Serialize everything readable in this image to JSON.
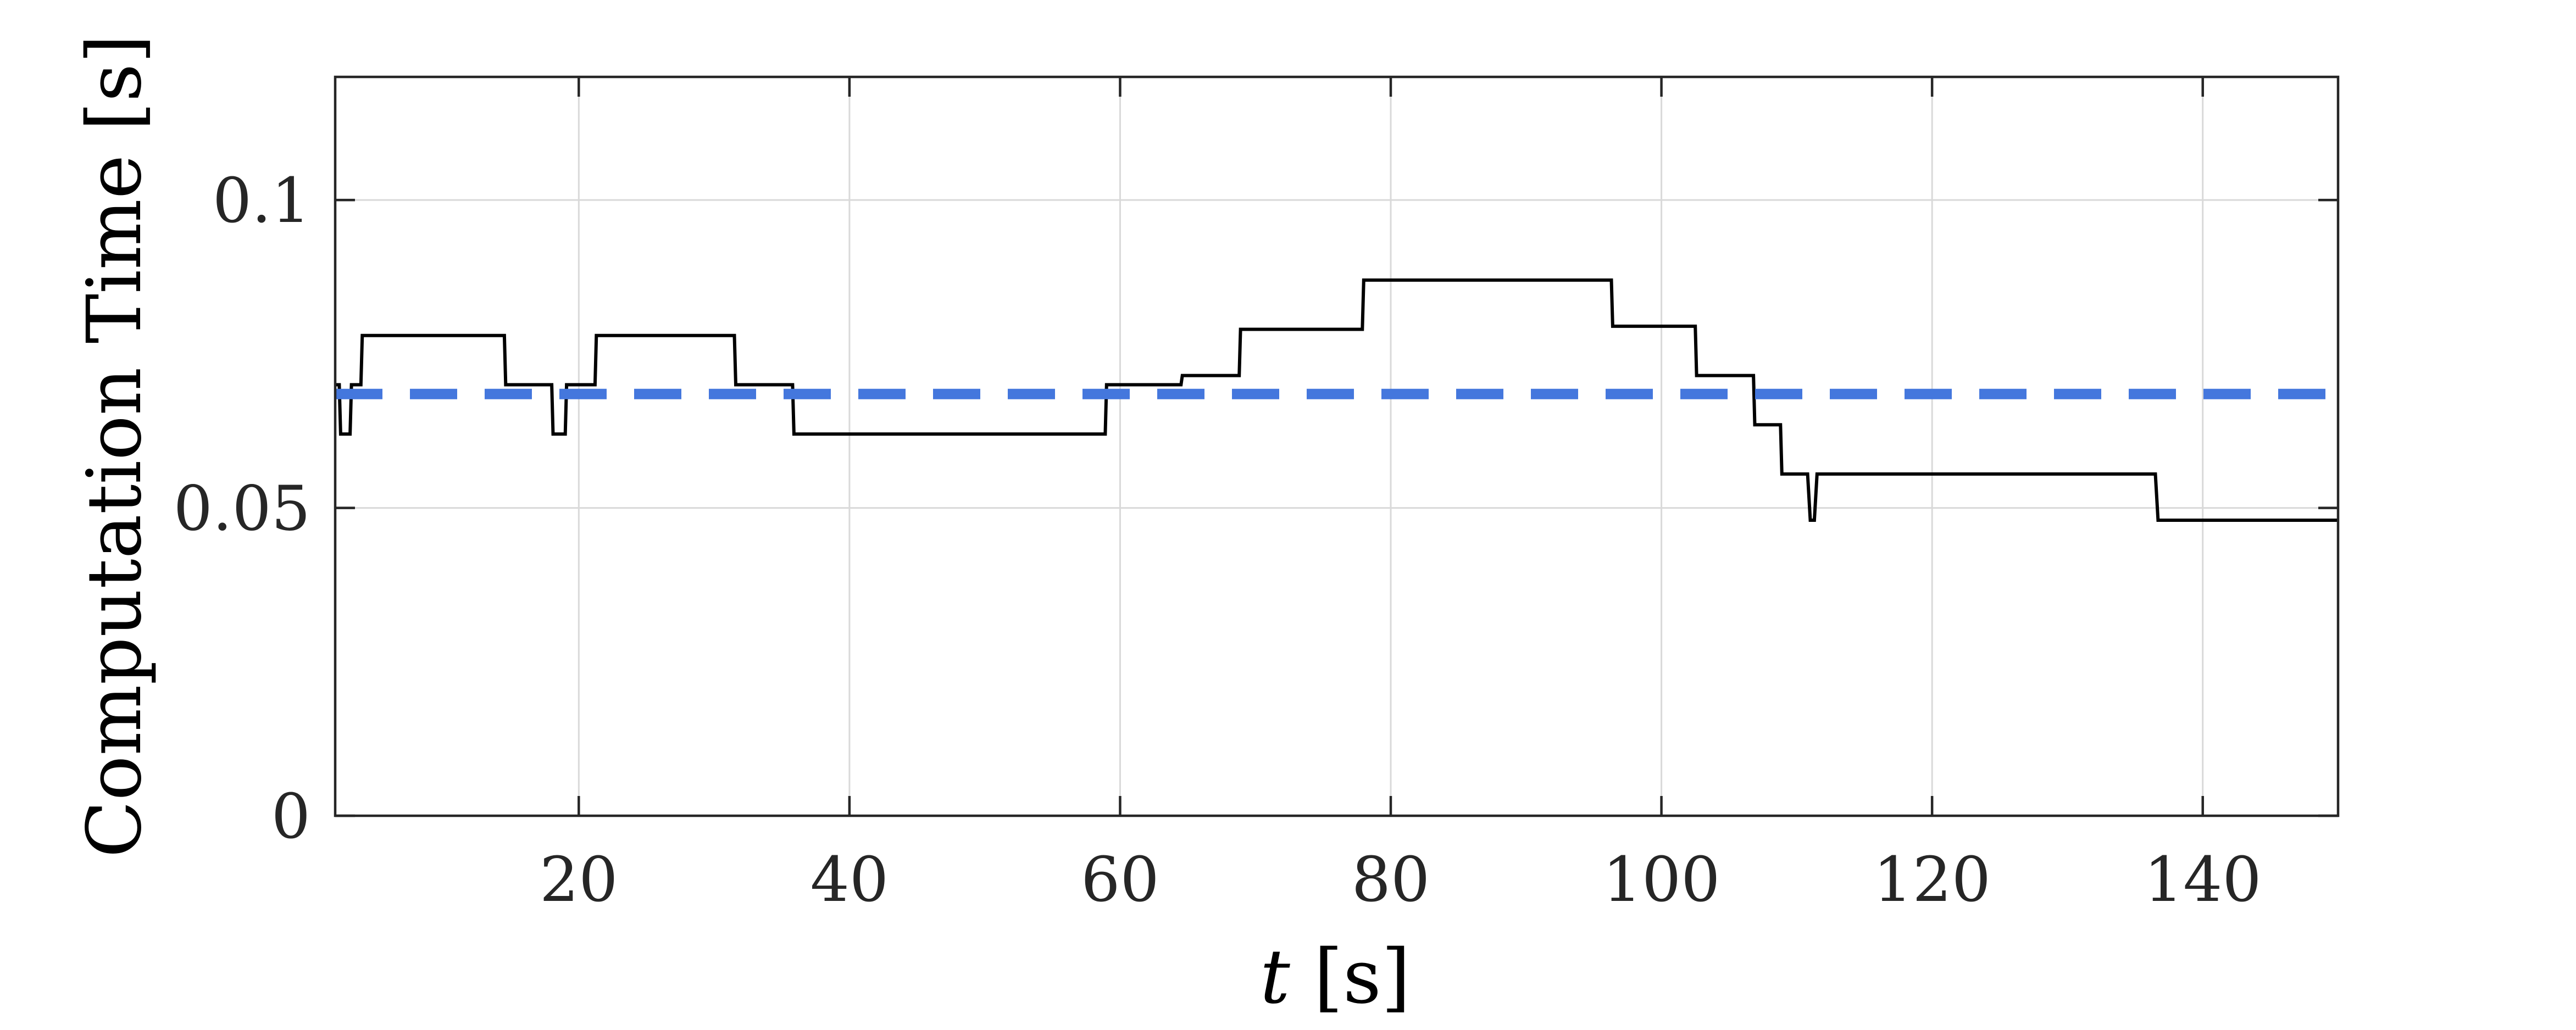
{
  "chart_data": {
    "type": "line",
    "title": "",
    "xlabel_symbol": "t",
    "xlabel_unit": " [s]",
    "ylabel": "Computation Time [s]",
    "xlim": [
      2,
      150
    ],
    "ylim": [
      0,
      0.12
    ],
    "xticks": [
      20,
      40,
      60,
      80,
      100,
      120,
      140
    ],
    "xtick_labels": [
      "20",
      "40",
      "60",
      "80",
      "100",
      "120",
      "140"
    ],
    "yticks": [
      0,
      0.05,
      0.1
    ],
    "ytick_labels": [
      "0",
      "0.05",
      "0.1"
    ],
    "grid": true,
    "legend": "none",
    "series": [
      {
        "style": "solid",
        "color": "#000000",
        "x": [
          2,
          2.3,
          2.4,
          3.1,
          3.2,
          3.9,
          4.0,
          14.5,
          14.6,
          18.0,
          18.1,
          19.0,
          19.1,
          21.2,
          21.3,
          31.5,
          31.6,
          35.8,
          35.9,
          58.9,
          59.0,
          64.5,
          64.6,
          68.8,
          68.9,
          77.9,
          78.0,
          96.3,
          96.4,
          102.5,
          102.6,
          106.8,
          106.9,
          108.8,
          108.9,
          110.8,
          111.0,
          111.3,
          111.5,
          136.5,
          136.7,
          138.3,
          138.4,
          150
        ],
        "y": [
          0.07,
          0.07,
          0.062,
          0.062,
          0.07,
          0.07,
          0.078,
          0.078,
          0.07,
          0.07,
          0.062,
          0.062,
          0.07,
          0.07,
          0.078,
          0.078,
          0.07,
          0.07,
          0.062,
          0.062,
          0.07,
          0.07,
          0.0715,
          0.0715,
          0.079,
          0.079,
          0.087,
          0.087,
          0.0795,
          0.0795,
          0.0715,
          0.0715,
          0.0635,
          0.0635,
          0.0555,
          0.0555,
          0.048,
          0.048,
          0.0555,
          0.0555,
          0.048,
          0.048,
          0.048,
          0.048
        ]
      },
      {
        "style": "dashed",
        "color": "#4477dd",
        "x": [
          2,
          150
        ],
        "y": [
          0.0685,
          0.0685
        ]
      }
    ]
  }
}
